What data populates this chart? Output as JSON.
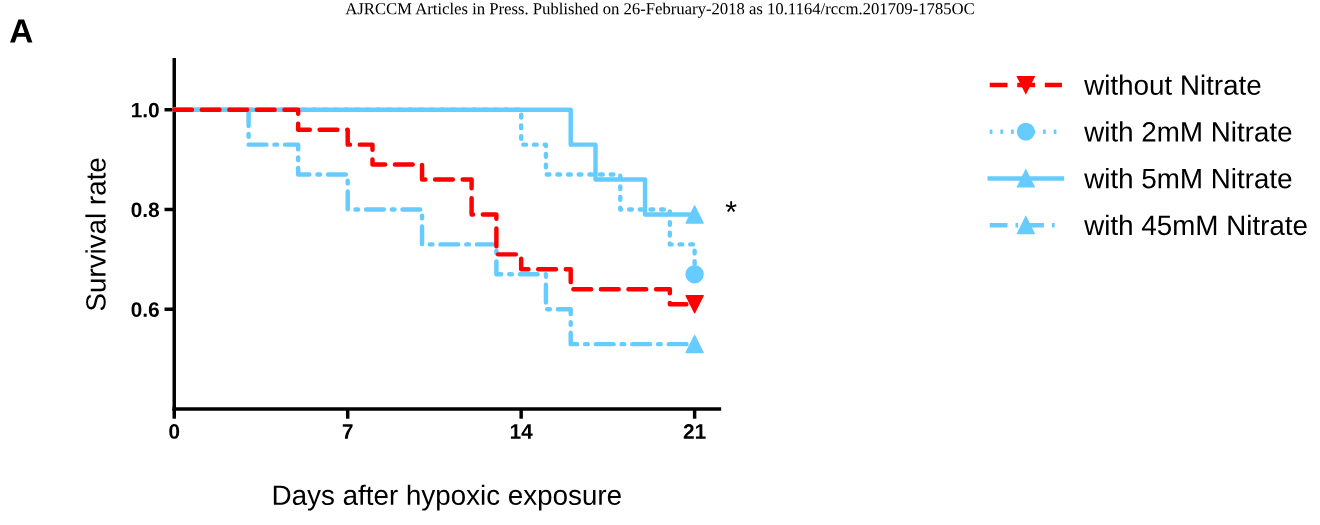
{
  "chart_data": {
    "type": "step",
    "xlabel": "Days after hypoxic exposure",
    "ylabel": "Survival rate",
    "xlim": [
      0,
      22
    ],
    "xticks": [
      0,
      7,
      14,
      21
    ],
    "ylim": [
      0.4,
      1.1
    ],
    "yticks": [
      {
        "value": 0.6,
        "label": "0.6"
      },
      {
        "value": 0.8,
        "label": "0.8"
      },
      {
        "value": 1.0,
        "label": "1.0"
      }
    ],
    "grid": false,
    "legend": "right",
    "annotations": [
      "AJRCCM Articles in Press. Published on 26-February-2018 as 10.1164/rccm.201709-1785OC",
      "A",
      {
        "text": "*",
        "x": 21,
        "y": 0.79
      }
    ],
    "series": [
      {
        "name": "without Nitrate",
        "color": "#ff0000",
        "line_style": "dashed",
        "x": [
          0,
          5,
          7,
          8,
          10,
          12,
          13,
          14,
          16,
          20,
          21
        ],
        "values": [
          1.0,
          0.96,
          0.93,
          0.89,
          0.86,
          0.79,
          0.71,
          0.68,
          0.64,
          0.61,
          0.61
        ]
      },
      {
        "type": "scatter",
        "color": "#ff0000",
        "marker": "triangle_down",
        "x": [
          21
        ],
        "values": [
          0.61
        ]
      },
      {
        "name": "with 2mM Nitrate",
        "color": "#66ccff",
        "line_style": "dotted",
        "x": [
          0,
          14,
          15,
          18,
          20,
          21
        ],
        "values": [
          1.0,
          0.93,
          0.87,
          0.8,
          0.73,
          0.67
        ]
      },
      {
        "type": "scatter",
        "color": "#66ccff",
        "marker": "circle",
        "x": [
          21
        ],
        "values": [
          0.67
        ]
      },
      {
        "name": "with 5mM Nitrate",
        "color": "#66ccff",
        "line_style": "solid",
        "x": [
          0,
          16,
          17,
          19,
          21
        ],
        "values": [
          1.0,
          0.93,
          0.86,
          0.79,
          0.79
        ]
      },
      {
        "type": "scatter",
        "color": "#66ccff",
        "marker": "triangle",
        "x": [
          21
        ],
        "values": [
          0.79
        ]
      },
      {
        "name": "with 45mM Nitrate",
        "color": "#66ccff",
        "line_style": "dashdot",
        "x": [
          0,
          3,
          5,
          7,
          10,
          13,
          15,
          16,
          21
        ],
        "values": [
          1.0,
          0.93,
          0.87,
          0.8,
          0.73,
          0.67,
          0.6,
          0.53,
          0.53
        ]
      },
      {
        "type": "scatter",
        "color": "#66ccff",
        "marker": "triangle",
        "x": [
          21
        ],
        "values": [
          0.53
        ]
      }
    ]
  }
}
